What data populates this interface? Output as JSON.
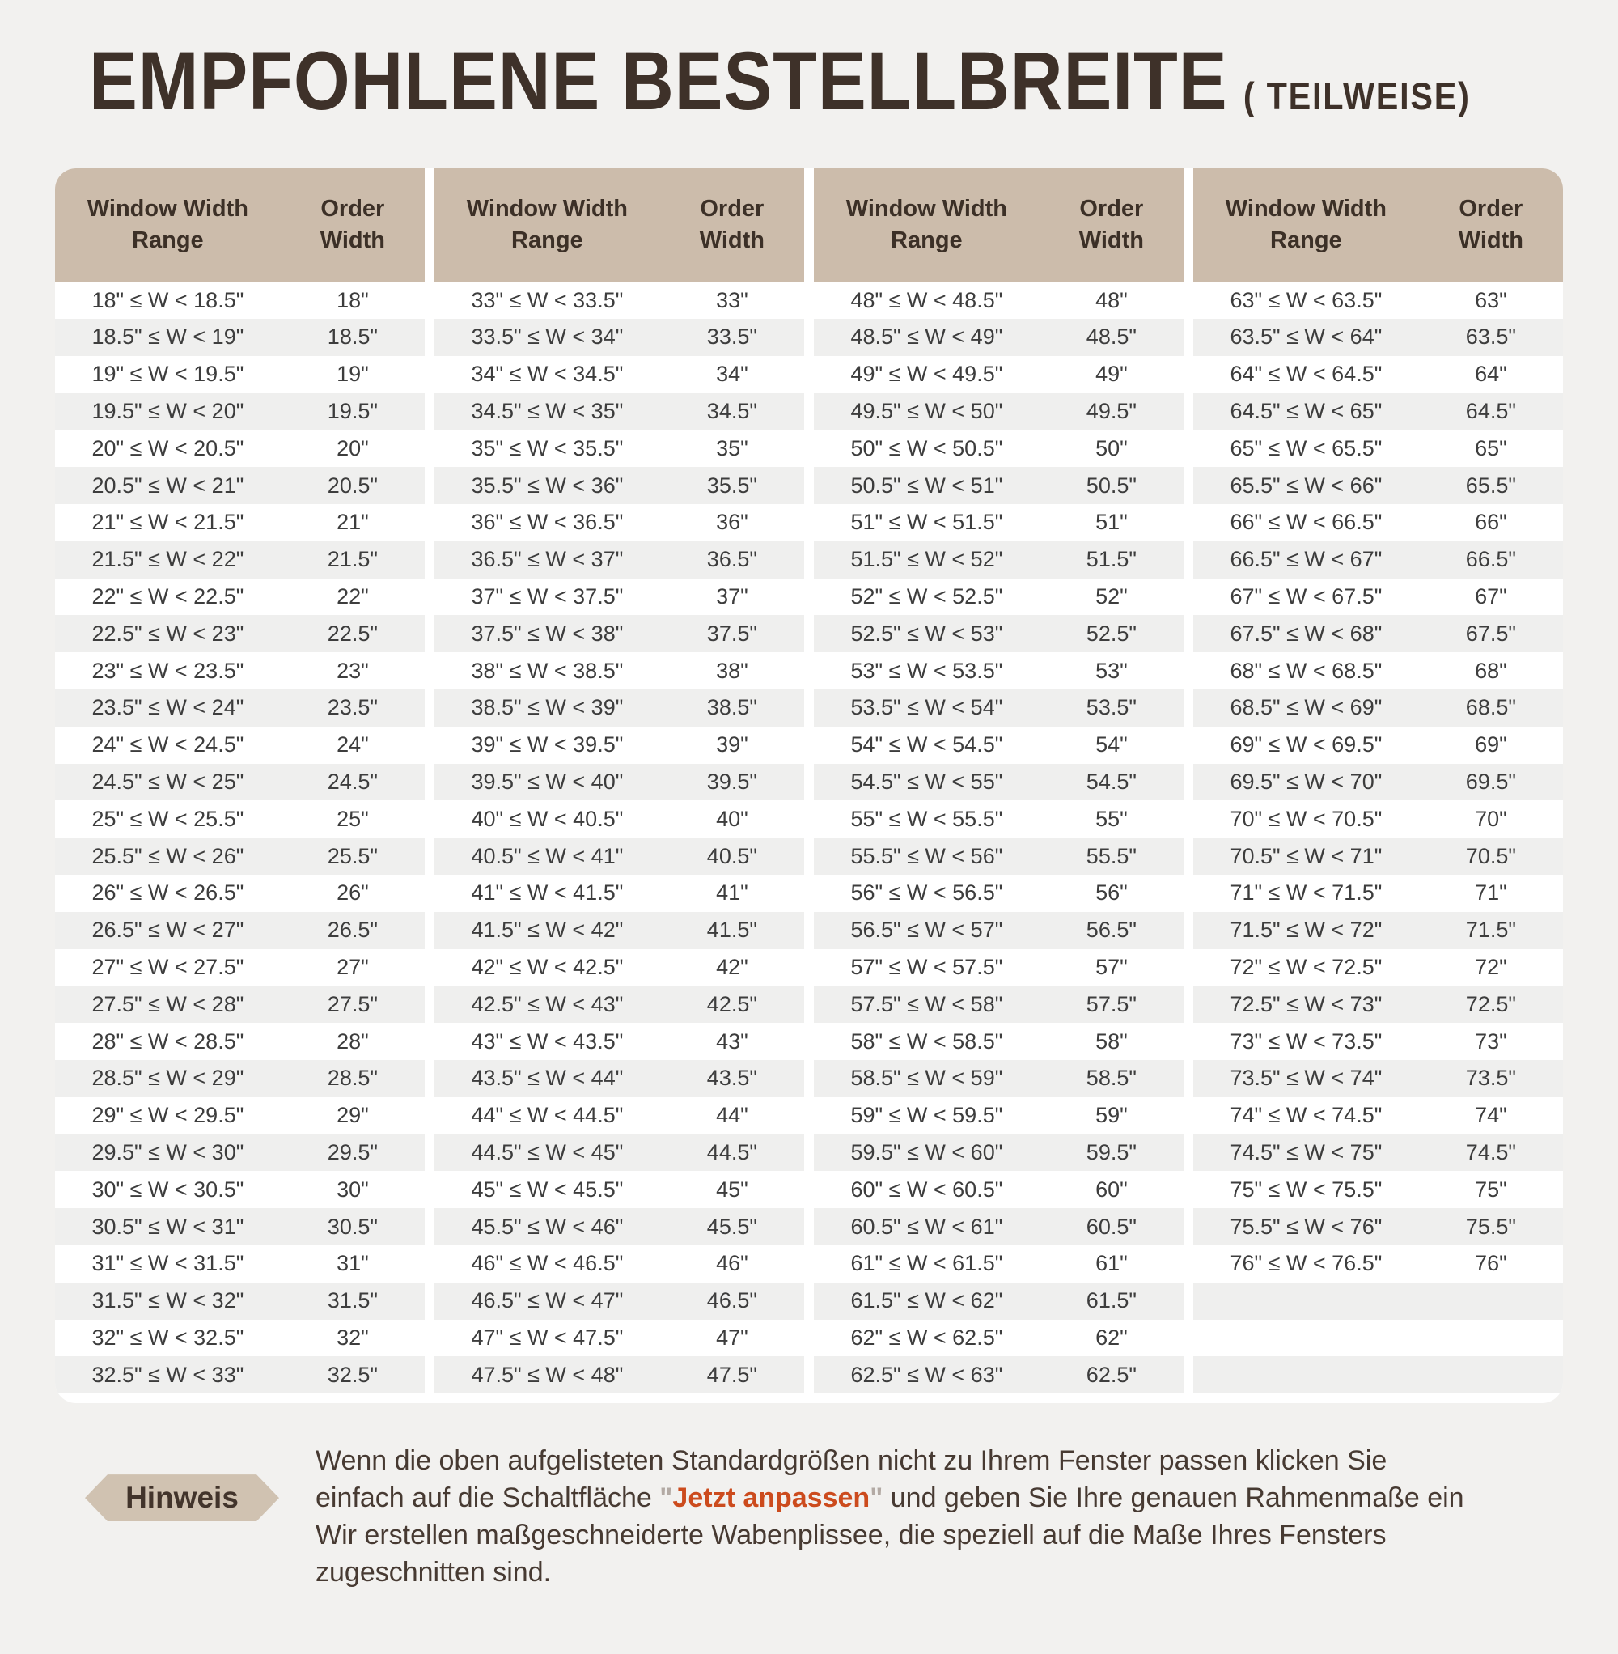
{
  "page": {
    "title_main": "EMPFOHLENE BESTELLBREITE",
    "title_suffix": "( TEILWEISE)"
  },
  "headers": {
    "window_width_range": "Window Width Range",
    "order_width": "Order Width"
  },
  "colors": {
    "page_background": "#f2f1ef",
    "panel_background": "#ffffff",
    "header_tan": "#ccbcab",
    "badge_tan": "#d0c2b1",
    "row_stripe": "#efefee",
    "title_text": "#3e3129",
    "data_text": "#3d3d3d",
    "note_text": "#473a32",
    "accent_orange": "#cc4b1d"
  },
  "tables": [
    {
      "rows": [
        [
          "18\" ≤ W < 18.5\"",
          "18\""
        ],
        [
          "18.5\" ≤ W < 19\"",
          "18.5\""
        ],
        [
          "19\" ≤ W < 19.5\"",
          "19\""
        ],
        [
          "19.5\" ≤ W < 20\"",
          "19.5\""
        ],
        [
          "20\" ≤ W < 20.5\"",
          "20\""
        ],
        [
          "20.5\" ≤ W < 21\"",
          "20.5\""
        ],
        [
          "21\" ≤ W < 21.5\"",
          "21\""
        ],
        [
          "21.5\" ≤ W < 22\"",
          "21.5\""
        ],
        [
          "22\" ≤ W < 22.5\"",
          "22\""
        ],
        [
          "22.5\" ≤ W < 23\"",
          "22.5\""
        ],
        [
          "23\" ≤ W < 23.5\"",
          "23\""
        ],
        [
          "23.5\" ≤ W < 24\"",
          "23.5\""
        ],
        [
          "24\" ≤ W < 24.5\"",
          "24\""
        ],
        [
          "24.5\" ≤ W < 25\"",
          "24.5\""
        ],
        [
          "25\" ≤ W < 25.5\"",
          "25\""
        ],
        [
          "25.5\" ≤ W < 26\"",
          "25.5\""
        ],
        [
          "26\" ≤ W < 26.5\"",
          "26\""
        ],
        [
          "26.5\" ≤ W < 27\"",
          "26.5\""
        ],
        [
          "27\" ≤ W < 27.5\"",
          "27\""
        ],
        [
          "27.5\" ≤ W < 28\"",
          "27.5\""
        ],
        [
          "28\" ≤ W < 28.5\"",
          "28\""
        ],
        [
          "28.5\" ≤ W < 29\"",
          "28.5\""
        ],
        [
          "29\" ≤ W < 29.5\"",
          "29\""
        ],
        [
          "29.5\" ≤ W < 30\"",
          "29.5\""
        ],
        [
          "30\" ≤ W < 30.5\"",
          "30\""
        ],
        [
          "30.5\" ≤ W < 31\"",
          "30.5\""
        ],
        [
          "31\" ≤ W < 31.5\"",
          "31\""
        ],
        [
          "31.5\" ≤ W < 32\"",
          "31.5\""
        ],
        [
          "32\" ≤ W < 32.5\"",
          "32\""
        ],
        [
          "32.5\" ≤ W < 33\"",
          "32.5\""
        ]
      ]
    },
    {
      "rows": [
        [
          "33\" ≤ W < 33.5\"",
          "33\""
        ],
        [
          "33.5\" ≤ W < 34\"",
          "33.5\""
        ],
        [
          "34\" ≤ W < 34.5\"",
          "34\""
        ],
        [
          "34.5\" ≤ W < 35\"",
          "34.5\""
        ],
        [
          "35\" ≤ W < 35.5\"",
          "35\""
        ],
        [
          "35.5\" ≤ W < 36\"",
          "35.5\""
        ],
        [
          "36\" ≤ W < 36.5\"",
          "36\""
        ],
        [
          "36.5\" ≤ W < 37\"",
          "36.5\""
        ],
        [
          "37\" ≤ W < 37.5\"",
          "37\""
        ],
        [
          "37.5\" ≤ W < 38\"",
          "37.5\""
        ],
        [
          "38\" ≤ W < 38.5\"",
          "38\""
        ],
        [
          "38.5\" ≤ W < 39\"",
          "38.5\""
        ],
        [
          "39\" ≤ W < 39.5\"",
          "39\""
        ],
        [
          "39.5\" ≤ W < 40\"",
          "39.5\""
        ],
        [
          "40\" ≤ W < 40.5\"",
          "40\""
        ],
        [
          "40.5\" ≤ W < 41\"",
          "40.5\""
        ],
        [
          "41\" ≤ W < 41.5\"",
          "41\""
        ],
        [
          "41.5\" ≤ W < 42\"",
          "41.5\""
        ],
        [
          "42\" ≤ W < 42.5\"",
          "42\""
        ],
        [
          "42.5\" ≤ W < 43\"",
          "42.5\""
        ],
        [
          "43\" ≤ W < 43.5\"",
          "43\""
        ],
        [
          "43.5\" ≤ W < 44\"",
          "43.5\""
        ],
        [
          "44\" ≤ W < 44.5\"",
          "44\""
        ],
        [
          "44.5\" ≤ W < 45\"",
          "44.5\""
        ],
        [
          "45\" ≤ W < 45.5\"",
          "45\""
        ],
        [
          "45.5\" ≤ W < 46\"",
          "45.5\""
        ],
        [
          "46\" ≤ W < 46.5\"",
          "46\""
        ],
        [
          "46.5\" ≤ W < 47\"",
          "46.5\""
        ],
        [
          "47\" ≤ W < 47.5\"",
          "47\""
        ],
        [
          "47.5\" ≤ W < 48\"",
          "47.5\""
        ]
      ]
    },
    {
      "rows": [
        [
          "48\" ≤ W < 48.5\"",
          "48\""
        ],
        [
          "48.5\" ≤ W < 49\"",
          "48.5\""
        ],
        [
          "49\" ≤ W < 49.5\"",
          "49\""
        ],
        [
          "49.5\" ≤ W < 50\"",
          "49.5\""
        ],
        [
          "50\" ≤ W < 50.5\"",
          "50\""
        ],
        [
          "50.5\" ≤ W < 51\"",
          "50.5\""
        ],
        [
          "51\" ≤ W < 51.5\"",
          "51\""
        ],
        [
          "51.5\" ≤ W < 52\"",
          "51.5\""
        ],
        [
          "52\" ≤ W < 52.5\"",
          "52\""
        ],
        [
          "52.5\" ≤ W < 53\"",
          "52.5\""
        ],
        [
          "53\" ≤ W < 53.5\"",
          "53\""
        ],
        [
          "53.5\" ≤ W < 54\"",
          "53.5\""
        ],
        [
          "54\" ≤ W < 54.5\"",
          "54\""
        ],
        [
          "54.5\" ≤ W < 55\"",
          "54.5\""
        ],
        [
          "55\" ≤ W < 55.5\"",
          "55\""
        ],
        [
          "55.5\" ≤ W < 56\"",
          "55.5\""
        ],
        [
          "56\" ≤ W < 56.5\"",
          "56\""
        ],
        [
          "56.5\" ≤ W < 57\"",
          "56.5\""
        ],
        [
          "57\" ≤ W < 57.5\"",
          "57\""
        ],
        [
          "57.5\" ≤ W < 58\"",
          "57.5\""
        ],
        [
          "58\" ≤ W < 58.5\"",
          "58\""
        ],
        [
          "58.5\" ≤ W < 59\"",
          "58.5\""
        ],
        [
          "59\" ≤ W < 59.5\"",
          "59\""
        ],
        [
          "59.5\" ≤ W < 60\"",
          "59.5\""
        ],
        [
          "60\" ≤ W < 60.5\"",
          "60\""
        ],
        [
          "60.5\" ≤ W < 61\"",
          "60.5\""
        ],
        [
          "61\" ≤ W < 61.5\"",
          "61\""
        ],
        [
          "61.5\" ≤ W < 62\"",
          "61.5\""
        ],
        [
          "62\" ≤ W < 62.5\"",
          "62\""
        ],
        [
          "62.5\" ≤ W < 63\"",
          "62.5\""
        ]
      ]
    },
    {
      "rows": [
        [
          "63\" ≤ W < 63.5\"",
          "63\""
        ],
        [
          "63.5\" ≤ W < 64\"",
          "63.5\""
        ],
        [
          "64\" ≤ W < 64.5\"",
          "64\""
        ],
        [
          "64.5\" ≤ W < 65\"",
          "64.5\""
        ],
        [
          "65\" ≤ W < 65.5\"",
          "65\""
        ],
        [
          "65.5\" ≤ W < 66\"",
          "65.5\""
        ],
        [
          "66\" ≤ W < 66.5\"",
          "66\""
        ],
        [
          "66.5\" ≤ W < 67\"",
          "66.5\""
        ],
        [
          "67\" ≤ W < 67.5\"",
          "67\""
        ],
        [
          "67.5\" ≤ W < 68\"",
          "67.5\""
        ],
        [
          "68\" ≤ W < 68.5\"",
          "68\""
        ],
        [
          "68.5\" ≤ W < 69\"",
          "68.5\""
        ],
        [
          "69\" ≤ W < 69.5\"",
          "69\""
        ],
        [
          "69.5\" ≤ W < 70\"",
          "69.5\""
        ],
        [
          "70\" ≤ W < 70.5\"",
          "70\""
        ],
        [
          "70.5\" ≤ W < 71\"",
          "70.5\""
        ],
        [
          "71\" ≤ W < 71.5\"",
          "71\""
        ],
        [
          "71.5\" ≤ W < 72\"",
          "71.5\""
        ],
        [
          "72\" ≤ W < 72.5\"",
          "72\""
        ],
        [
          "72.5\" ≤ W < 73\"",
          "72.5\""
        ],
        [
          "73\" ≤ W < 73.5\"",
          "73\""
        ],
        [
          "73.5\" ≤ W < 74\"",
          "73.5\""
        ],
        [
          "74\" ≤ W < 74.5\"",
          "74\""
        ],
        [
          "74.5\" ≤ W < 75\"",
          "74.5\""
        ],
        [
          "75\" ≤ W < 75.5\"",
          "75\""
        ],
        [
          "75.5\" ≤ W < 76\"",
          "75.5\""
        ],
        [
          "76\" ≤ W < 76.5\"",
          "76\""
        ]
      ]
    }
  ],
  "note": {
    "badge": "Hinweis",
    "line1": "Wenn die oben aufgelisteten Standardgrößen nicht zu Ihrem Fenster passen klicken Sie",
    "line2_before": "einfach auf die Schaltfläche ",
    "line2_quote_open": "\"",
    "line2_highlight": "Jetzt anpassen",
    "line2_quote_close": "\"",
    "line2_after": " und geben Sie Ihre genauen Rahmenmaße ein",
    "line3": "Wir erstellen maßgeschneiderte Wabenplissee, die speziell auf die Maße Ihres Fensters",
    "line4": "zugeschnitten sind."
  }
}
